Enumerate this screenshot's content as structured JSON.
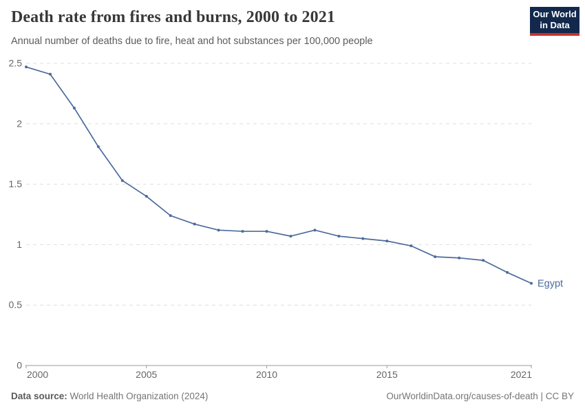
{
  "header": {
    "title": "Death rate from fires and burns, 2000 to 2021",
    "subtitle": "Annual number of deaths due to fire, heat and hot substances per 100,000 people"
  },
  "logo": {
    "line1": "Our World",
    "line2": "in Data"
  },
  "chart_data": {
    "type": "line",
    "title": "Death rate from fires and burns, 2000 to 2021",
    "subtitle": "Annual number of deaths due to fire, heat and hot substances per 100,000 people",
    "x": [
      2000,
      2001,
      2002,
      2003,
      2004,
      2005,
      2006,
      2007,
      2008,
      2009,
      2010,
      2011,
      2012,
      2013,
      2014,
      2015,
      2016,
      2017,
      2018,
      2019,
      2020,
      2021
    ],
    "series": [
      {
        "name": "Egypt",
        "color": "#4C6A9C",
        "values": [
          2.47,
          2.41,
          2.13,
          1.81,
          1.53,
          1.4,
          1.24,
          1.17,
          1.12,
          1.11,
          1.11,
          1.07,
          1.12,
          1.07,
          1.05,
          1.03,
          0.99,
          0.9,
          0.89,
          0.87,
          0.77,
          0.68
        ]
      }
    ],
    "xlabel": "",
    "ylabel": "",
    "ylim": [
      0,
      2.5
    ],
    "yticks": [
      0,
      0.5,
      1,
      1.5,
      2,
      2.5
    ],
    "ytick_labels": [
      "0",
      "0.5",
      "1",
      "1.5",
      "2",
      "2.5"
    ],
    "xticks": [
      2000,
      2005,
      2010,
      2015,
      2021
    ],
    "xtick_labels": [
      "2000",
      "2005",
      "2010",
      "2015",
      "2021"
    ],
    "grid": "horizontal-dashed",
    "legend_position": "end-of-line-label",
    "end_label": "Egypt"
  },
  "footer": {
    "source_label": "Data source:",
    "source_value": "World Health Organization (2024)",
    "credit": "OurWorldinData.org/causes-of-death | CC BY"
  },
  "colors": {
    "line": "#4C6A9C",
    "grid": "#dedede",
    "axis": "#9a9a9a",
    "tick_label": "#666666",
    "logo_bg": "#12294d",
    "logo_accent": "#c7322c"
  }
}
